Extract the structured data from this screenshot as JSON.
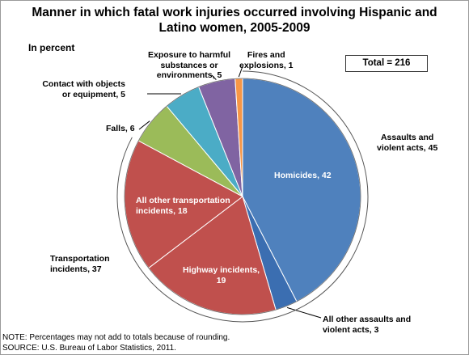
{
  "chart_data": {
    "type": "pie",
    "title": "Manner in which fatal work injuries occurred involving Hispanic and Latino women, 2005-2009",
    "subtitle": "In percent",
    "total_label": "Total = 216",
    "slices": [
      {
        "label": "Homicides, 42",
        "value": 42,
        "color": "#4f81bd"
      },
      {
        "label": "All other assaults and violent acts, 3",
        "value": 3,
        "color": "#3b6eb1"
      },
      {
        "label": "Highway incidents, 19",
        "value": 19,
        "color": "#c0504d"
      },
      {
        "label": "All other transportation incidents, 18",
        "value": 18,
        "color": "#c0504d"
      },
      {
        "label": "Falls, 6",
        "value": 6,
        "color": "#9bbb59"
      },
      {
        "label": "Contact with objects or equipment, 5",
        "value": 5,
        "color": "#4bacc6"
      },
      {
        "label": "Exposure to harmful substances or environments, 5",
        "value": 5,
        "color": "#8064a2"
      },
      {
        "label": "Fires and explosions, 1",
        "value": 1,
        "color": "#f79646"
      }
    ],
    "groups": [
      {
        "label": "Assaults and violent acts, 45",
        "value": 45
      },
      {
        "label": "Transportation incidents, 37",
        "value": 37
      }
    ]
  },
  "labels": {
    "title_line1": "Manner in which fatal work injuries occurred involving Hispanic and",
    "title_line2": "Latino women, 2005-2009",
    "fires_1": "Fires and",
    "fires_2": "explosions, 1",
    "exposure_1": "Exposure to harmful",
    "exposure_2": "substances or",
    "exposure_3": "environments, 5",
    "contact_1": "Contact with objects",
    "contact_2": "or equipment, 5",
    "falls": "Falls, 6",
    "assaults_1": "Assaults and",
    "assaults_2": "violent acts, 45",
    "homicides": "Homicides, 42",
    "other_transport_1": "All other transportation",
    "other_transport_2": "incidents, 18",
    "transport_1": "Transportation",
    "transport_2": "incidents, 37",
    "highway_1": "Highway incidents,",
    "highway_2": "19",
    "other_assaults_1": "All other assaults and",
    "other_assaults_2": "violent acts, 3"
  },
  "notes": {
    "note": "NOTE:  Percentages may not add to totals because of rounding.",
    "source": "SOURCE:  U.S. Bureau of Labor Statistics, 2011."
  }
}
